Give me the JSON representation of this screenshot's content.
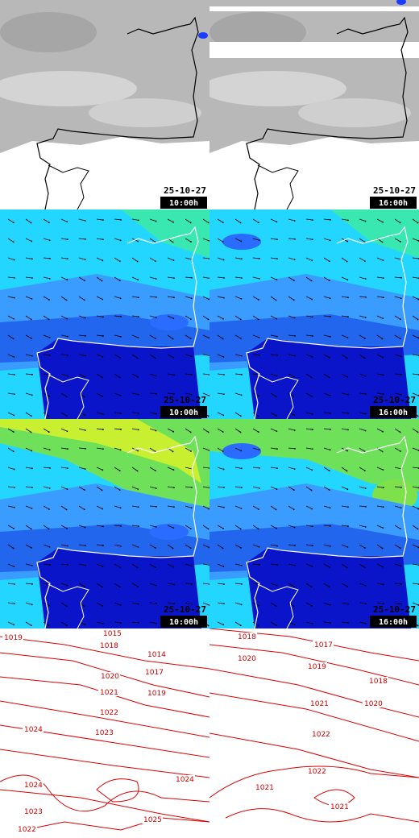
{
  "cloud_panels": [
    {
      "date": "25-10-27",
      "time": "10:00h"
    },
    {
      "date": "25-10-27",
      "time": "16:00h"
    }
  ],
  "wind_panels": [
    {
      "date": "25-10-27",
      "time": "10:00h"
    },
    {
      "date": "25-10-27",
      "time": "16:00h"
    }
  ],
  "gust_panels": [
    {
      "date": "25-10-27",
      "time": "10:00h"
    },
    {
      "date": "25-10-27",
      "time": "16:00h"
    }
  ],
  "pressure_panels": [
    {
      "labels": [
        1015,
        1019,
        1014,
        1018,
        1017,
        1020,
        1019,
        1021,
        1022,
        1023,
        1024,
        1024,
        1024,
        1023,
        1025,
        1022
      ]
    },
    {
      "labels": [
        1018,
        1017,
        1020,
        1019,
        1018,
        1021,
        1020,
        1022,
        1022,
        1021,
        1021
      ]
    }
  ]
}
